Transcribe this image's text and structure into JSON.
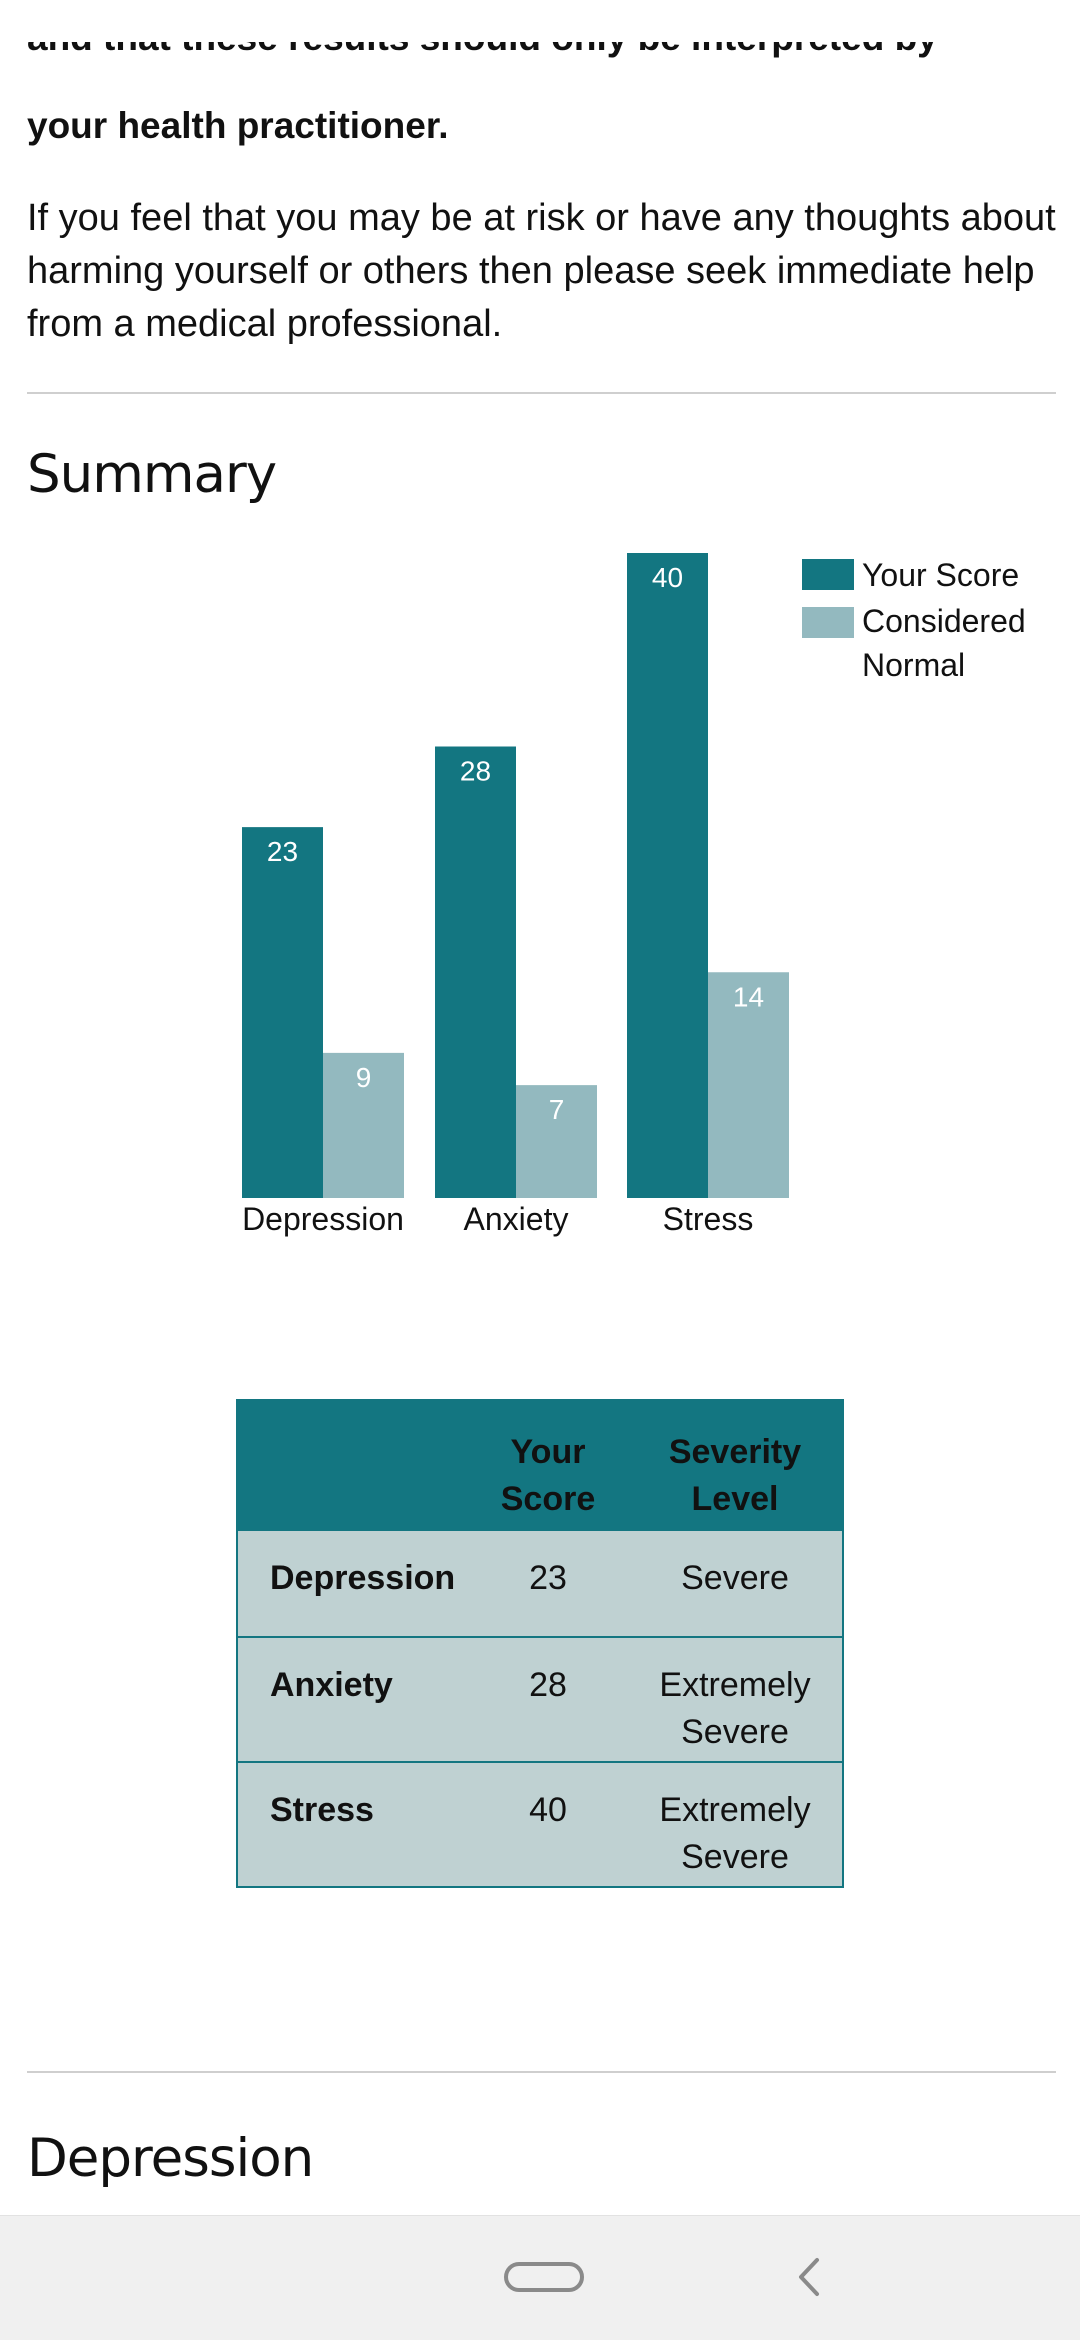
{
  "intro": {
    "bold_line1": "and that these results should only be interpreted by",
    "bold_line2": "your health practitioner.",
    "risk_text": "If you feel that you may be at risk or have any thoughts about harming yourself or others then please seek immediate help from a medical professional."
  },
  "summary": {
    "heading": "Summary"
  },
  "chart_data": {
    "type": "bar",
    "categories": [
      "Depression",
      "Anxiety",
      "Stress"
    ],
    "series": [
      {
        "name": "Your Score",
        "values": [
          23,
          28,
          40
        ],
        "color": "#137681"
      },
      {
        "name": "Considered Normal",
        "values": [
          9,
          7,
          14
        ],
        "color": "#93b9bf"
      }
    ],
    "legend_entries": [
      "Your Score",
      "Considered Normal"
    ],
    "legend_placement": "top-right",
    "ylim": [
      0,
      40
    ],
    "grid": false,
    "data_labels": true
  },
  "table": {
    "headers": [
      "",
      "Your Score",
      "Severity Level"
    ],
    "rows": [
      {
        "label": "Depression",
        "score": "23",
        "severity": "Severe"
      },
      {
        "label": "Anxiety",
        "score": "28",
        "severity": "Extremely Severe"
      },
      {
        "label": "Stress",
        "score": "40",
        "severity": "Extremely Severe"
      }
    ]
  },
  "next_section": {
    "heading": "Depression"
  },
  "colors": {
    "primary": "#137681",
    "secondary": "#93b9bf",
    "table_row": "#bfd1d2",
    "nav_bar": "#f0f0f0"
  },
  "icons": {
    "home": "home-pill-icon",
    "back": "back-chevron-icon"
  }
}
